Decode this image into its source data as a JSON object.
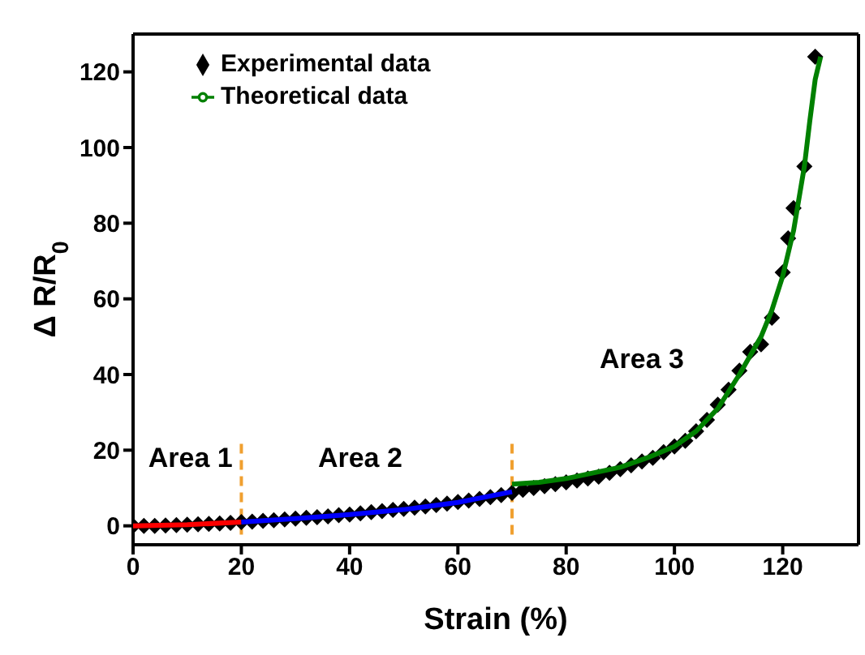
{
  "chart_data": {
    "type": "scatter",
    "xlabel": "Strain (%)",
    "ylabel": "Δ R/R$_{0}$",
    "xlim": [
      0,
      134
    ],
    "xticks": [
      0,
      20,
      40,
      60,
      80,
      100,
      120
    ],
    "ylim": [
      -5,
      130
    ],
    "yticks": [
      0,
      20,
      40,
      60,
      80,
      100,
      120
    ],
    "legend": "top left",
    "grid": false,
    "series": [
      {
        "name": "Experimental data",
        "marker": "diamond",
        "color": "#000000",
        "x": [
          0,
          2,
          4,
          6,
          8,
          10,
          12,
          14,
          16,
          18,
          20,
          22,
          24,
          26,
          28,
          30,
          32,
          34,
          36,
          38,
          40,
          42,
          44,
          46,
          48,
          50,
          52,
          54,
          56,
          58,
          60,
          62,
          64,
          66,
          68,
          70,
          72,
          74,
          76,
          78,
          80,
          82,
          84,
          86,
          88,
          90,
          92,
          94,
          96,
          98,
          100,
          102,
          104,
          106,
          108,
          110,
          112,
          114,
          116,
          118,
          120,
          121,
          122,
          124,
          126
        ],
        "values": [
          0,
          0,
          0,
          0.1,
          0.2,
          0.3,
          0.4,
          0.5,
          0.6,
          0.8,
          1,
          1.1,
          1.3,
          1.5,
          1.7,
          1.9,
          2.1,
          2.3,
          2.5,
          2.8,
          3,
          3.3,
          3.6,
          3.9,
          4.2,
          4.5,
          4.8,
          5.1,
          5.5,
          5.9,
          6.3,
          6.7,
          7.1,
          7.6,
          8.1,
          8.7,
          9.5,
          10,
          10.5,
          11,
          11.5,
          12,
          12.5,
          13,
          14,
          15,
          16,
          17,
          18,
          19.5,
          21,
          22.5,
          25,
          28,
          32,
          36,
          41,
          46,
          48,
          55,
          67,
          76,
          84,
          95,
          124
        ]
      },
      {
        "type": "line",
        "color": "#ff0000",
        "x": [
          0,
          10,
          20
        ],
        "values": [
          0,
          0.3,
          1
        ]
      },
      {
        "type": "line",
        "color": "#0000ff",
        "x": [
          20,
          30,
          40,
          50,
          60,
          70
        ],
        "values": [
          1,
          1.9,
          3,
          4.3,
          6.2,
          9
        ]
      },
      {
        "name": "Theoretical data",
        "type": "line",
        "color": "#008000",
        "x": [
          70,
          75,
          80,
          85,
          90,
          95,
          100,
          104,
          108,
          112,
          116,
          118,
          120,
          122,
          124,
          125,
          126,
          127
        ],
        "values": [
          11,
          11.5,
          12.5,
          14,
          15.5,
          18,
          21,
          25,
          31,
          40,
          50,
          57,
          66,
          78,
          95,
          107,
          118,
          124
        ]
      }
    ],
    "ref_lines": [
      {
        "axis": "x",
        "value": 20,
        "color": "#f0a030",
        "line_style": "dashed"
      },
      {
        "axis": "x",
        "value": 70,
        "color": "#f0a030",
        "line_style": "dashed"
      }
    ],
    "annotations": [
      "Area 1",
      "Area 2",
      "Area 3"
    ]
  }
}
